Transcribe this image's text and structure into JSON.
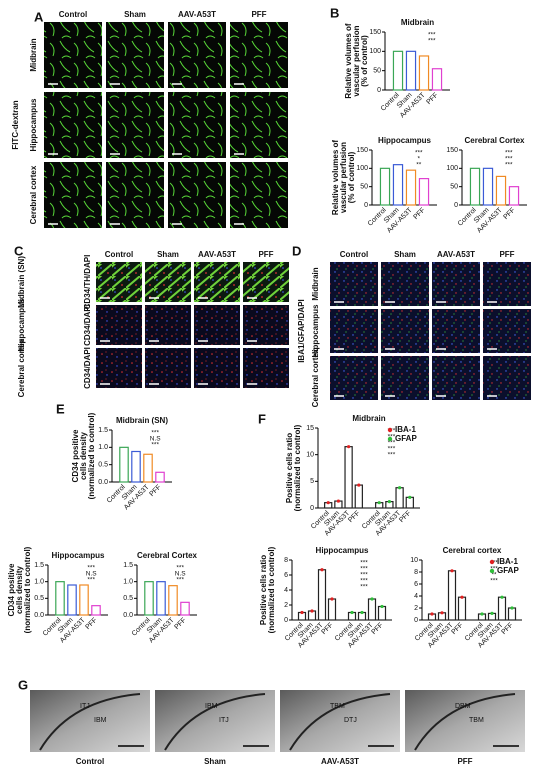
{
  "panel_letters": [
    "A",
    "B",
    "C",
    "D",
    "E",
    "F",
    "G"
  ],
  "panel_a": {
    "stain": "FITC-dextran",
    "columns": [
      "Control",
      "Sham",
      "AAV-A53T",
      "PFF"
    ],
    "rows": [
      "Midbrain",
      "Hippocampus",
      "Cerebral cortex"
    ]
  },
  "panel_c": {
    "columns": [
      "Control",
      "Sham",
      "AAV-A53T",
      "PFF"
    ],
    "rows": [
      "Midbrain (SN)",
      "Hippocampus",
      "Cerebral cortex"
    ],
    "stains": [
      "CD34/TH/DAPI",
      "CD34/DAPI",
      "CD34/DAPI"
    ]
  },
  "panel_d": {
    "stain": "IBA1/GFAP/DAPI",
    "columns": [
      "Control",
      "Sham",
      "AAV-A53T",
      "PFF"
    ],
    "rows": [
      "Midbrain",
      "Hippocampus",
      "Cerebral cortex"
    ]
  },
  "panel_g": {
    "captions": [
      "Control",
      "Sham",
      "AAV-A53T",
      "PFF"
    ],
    "labels": [
      [
        "ITJ",
        "IBM"
      ],
      [
        "IBM",
        "ITJ"
      ],
      [
        "TBM",
        "DTJ"
      ],
      [
        "DBM",
        "TBM"
      ]
    ]
  },
  "chart_data": [
    {
      "type": "bar",
      "title": "Midbrain",
      "ylabel": [
        "Relative volumes of",
        "vascular perfusion",
        "(% of control)"
      ],
      "categories": [
        "Control",
        "Sham",
        "AAV-A53T",
        "PFF"
      ],
      "values": [
        100,
        100,
        88,
        55
      ],
      "colors": [
        "#3aa655",
        "#3b5bd6",
        "#f08a24",
        "#e040d0"
      ],
      "ylim": [
        0,
        150
      ],
      "yticks": [
        0,
        50,
        100,
        150
      ],
      "annotations": [
        "***",
        "***"
      ]
    },
    {
      "type": "bar",
      "title": "Hippocampus",
      "ylabel": [
        "Relative volumes of",
        "vascular perfusion",
        "(% of control)"
      ],
      "categories": [
        "Control",
        "Sham",
        "AAV-A53T",
        "PFF"
      ],
      "values": [
        100,
        110,
        95,
        72
      ],
      "colors": [
        "#3aa655",
        "#3b5bd6",
        "#f08a24",
        "#e040d0"
      ],
      "ylim": [
        0,
        150
      ],
      "yticks": [
        0,
        50,
        100,
        150
      ],
      "annotations": [
        "***",
        "*",
        "**"
      ]
    },
    {
      "type": "bar",
      "title": "Cerebral Cortex",
      "categories": [
        "Control",
        "Sham",
        "AAV-A53T",
        "PFF"
      ],
      "values": [
        100,
        100,
        78,
        50
      ],
      "colors": [
        "#3aa655",
        "#3b5bd6",
        "#f08a24",
        "#e040d0"
      ],
      "ylim": [
        0,
        150
      ],
      "yticks": [
        0,
        50,
        100,
        150
      ],
      "annotations": [
        "***",
        "***",
        "***"
      ]
    },
    {
      "type": "bar",
      "title": "Midbrain (SN)",
      "ylabel": [
        "CD34 positive",
        "cells density",
        "(normalized to control)"
      ],
      "categories": [
        "Control",
        "Sham",
        "AAV-A53T",
        "PFF"
      ],
      "values": [
        1.0,
        0.88,
        0.8,
        0.28
      ],
      "colors": [
        "#3aa655",
        "#3b5bd6",
        "#f08a24",
        "#e040d0"
      ],
      "ylim": [
        0,
        1.5
      ],
      "yticks": [
        {
          "value": 0,
          "label": "0.0"
        },
        {
          "value": 0.5,
          "label": "0.5"
        },
        {
          "value": 1,
          "label": "1.0"
        },
        {
          "value": 1.5,
          "label": "1.5"
        }
      ],
      "annotations": [
        "***",
        "N.S",
        "***"
      ]
    },
    {
      "type": "bar",
      "title": "Hippocampus",
      "ylabel": [
        "CD34 positive",
        "cells density",
        "(normalized to control)"
      ],
      "categories": [
        "Control",
        "Sham",
        "AAV-A53T",
        "PFF"
      ],
      "values": [
        1.0,
        0.9,
        0.9,
        0.28
      ],
      "colors": [
        "#3aa655",
        "#3b5bd6",
        "#f08a24",
        "#e040d0"
      ],
      "ylim": [
        0,
        1.5
      ],
      "yticks": [
        {
          "value": 0,
          "label": "0.0"
        },
        {
          "value": 0.5,
          "label": "0.5"
        },
        {
          "value": 1,
          "label": "1.0"
        },
        {
          "value": 1.5,
          "label": "1.5"
        }
      ],
      "annotations": [
        "***",
        "N.S",
        "***"
      ]
    },
    {
      "type": "bar",
      "title": "Cerebral Cortex",
      "categories": [
        "Control",
        "Sham",
        "AAV-A53T",
        "PFF"
      ],
      "values": [
        1.0,
        1.0,
        0.88,
        0.38
      ],
      "colors": [
        "#3aa655",
        "#3b5bd6",
        "#f08a24",
        "#e040d0"
      ],
      "ylim": [
        0,
        1.5
      ],
      "yticks": [
        {
          "value": 0,
          "label": "0.0"
        },
        {
          "value": 0.5,
          "label": "0.5"
        },
        {
          "value": 1,
          "label": "1.0"
        },
        {
          "value": 1.5,
          "label": "1.5"
        }
      ],
      "annotations": [
        "***",
        "N.S",
        "***"
      ]
    },
    {
      "type": "bar",
      "title": "Midbrain",
      "ylabel": [
        "Positive cells ratio",
        "(normalized to control)"
      ],
      "legend": true,
      "categories": [
        "Control",
        "Sham",
        "AAV-A53T",
        "PFF"
      ],
      "series": [
        {
          "name": "IBA-1",
          "color": "#e02020",
          "values": [
            1.0,
            1.3,
            11.5,
            4.3
          ]
        },
        {
          "name": "GFAP",
          "color": "#2fbf3a",
          "values": [
            1.0,
            1.2,
            3.8,
            2.0
          ]
        }
      ],
      "ylim": [
        0,
        15
      ],
      "yticks": [
        0,
        5,
        10,
        15
      ],
      "annotations": [
        "***",
        "***",
        "***",
        "***",
        "***"
      ]
    },
    {
      "type": "bar",
      "title": "Hippocampus",
      "ylabel": [
        "Positive cells ratio",
        "(normalized to control)"
      ],
      "legend": false,
      "categories": [
        "Control",
        "Sham",
        "AAV-A53T",
        "PFF"
      ],
      "series": [
        {
          "name": "IBA-1",
          "color": "#e02020",
          "values": [
            1.0,
            1.2,
            6.7,
            2.8
          ]
        },
        {
          "name": "GFAP",
          "color": "#2fbf3a",
          "values": [
            1.0,
            1.0,
            2.8,
            1.8
          ]
        }
      ],
      "ylim": [
        0,
        8
      ],
      "yticks": [
        0,
        2,
        4,
        6,
        8
      ],
      "annotations": [
        "***",
        "***",
        "***",
        "***",
        "***"
      ]
    },
    {
      "type": "bar",
      "title": "Cerebral cortex",
      "legend": true,
      "categories": [
        "Control",
        "Sham",
        "AAV-A53T",
        "PFF"
      ],
      "series": [
        {
          "name": "IBA-1",
          "color": "#e02020",
          "values": [
            1.0,
            1.2,
            8.2,
            3.8
          ]
        },
        {
          "name": "GFAP",
          "color": "#2fbf3a",
          "values": [
            1.0,
            1.1,
            3.8,
            2.0
          ]
        }
      ],
      "ylim": [
        0,
        10
      ],
      "yticks": [
        0,
        2,
        4,
        6,
        8,
        10
      ],
      "annotations": [
        "***",
        "***",
        "**",
        "***"
      ]
    }
  ]
}
